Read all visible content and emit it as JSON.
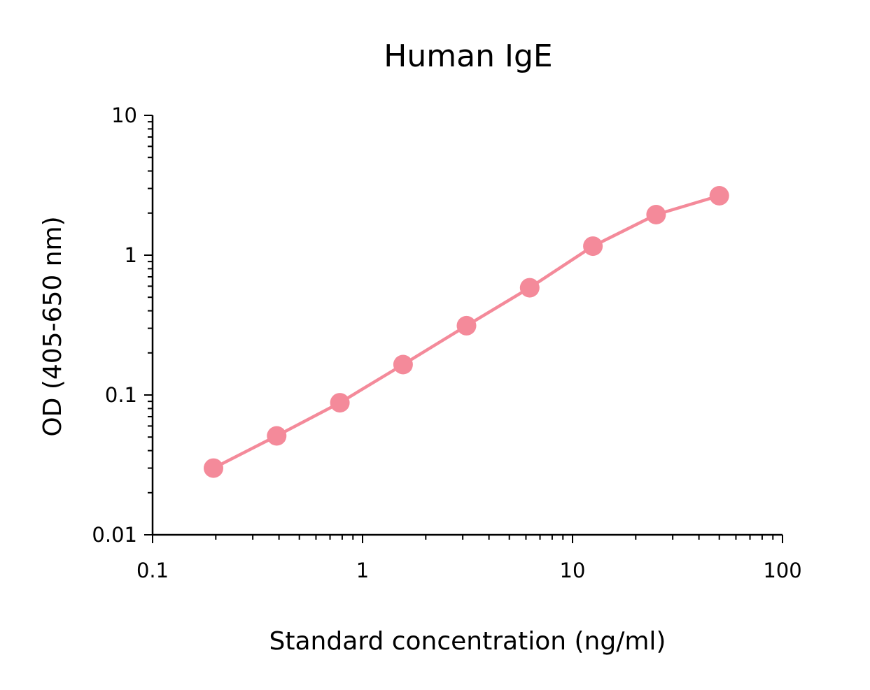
{
  "chart_data": {
    "type": "line",
    "title": "Human IgE",
    "xlabel": "Standard concentration (ng/ml)",
    "ylabel": "OD (405-650 nm)",
    "x_scale": "log",
    "y_scale": "log",
    "xlim": [
      0.1,
      100
    ],
    "ylim": [
      0.01,
      10
    ],
    "x_ticks": [
      {
        "value": 0.1,
        "label": "0.1"
      },
      {
        "value": 1,
        "label": "1"
      },
      {
        "value": 10,
        "label": "10"
      },
      {
        "value": 100,
        "label": "100"
      }
    ],
    "y_ticks": [
      {
        "value": 0.01,
        "label": "0.01"
      },
      {
        "value": 0.1,
        "label": "0.1"
      },
      {
        "value": 1,
        "label": "1"
      },
      {
        "value": 10,
        "label": "10"
      }
    ],
    "grid": false,
    "legend": "none",
    "series": [
      {
        "color": "#f48a9a",
        "x": [
          0.195,
          0.39,
          0.78,
          1.56,
          3.125,
          6.25,
          12.5,
          25,
          50
        ],
        "y": [
          0.03,
          0.051,
          0.088,
          0.165,
          0.313,
          0.585,
          1.16,
          1.95,
          2.66
        ]
      }
    ]
  }
}
